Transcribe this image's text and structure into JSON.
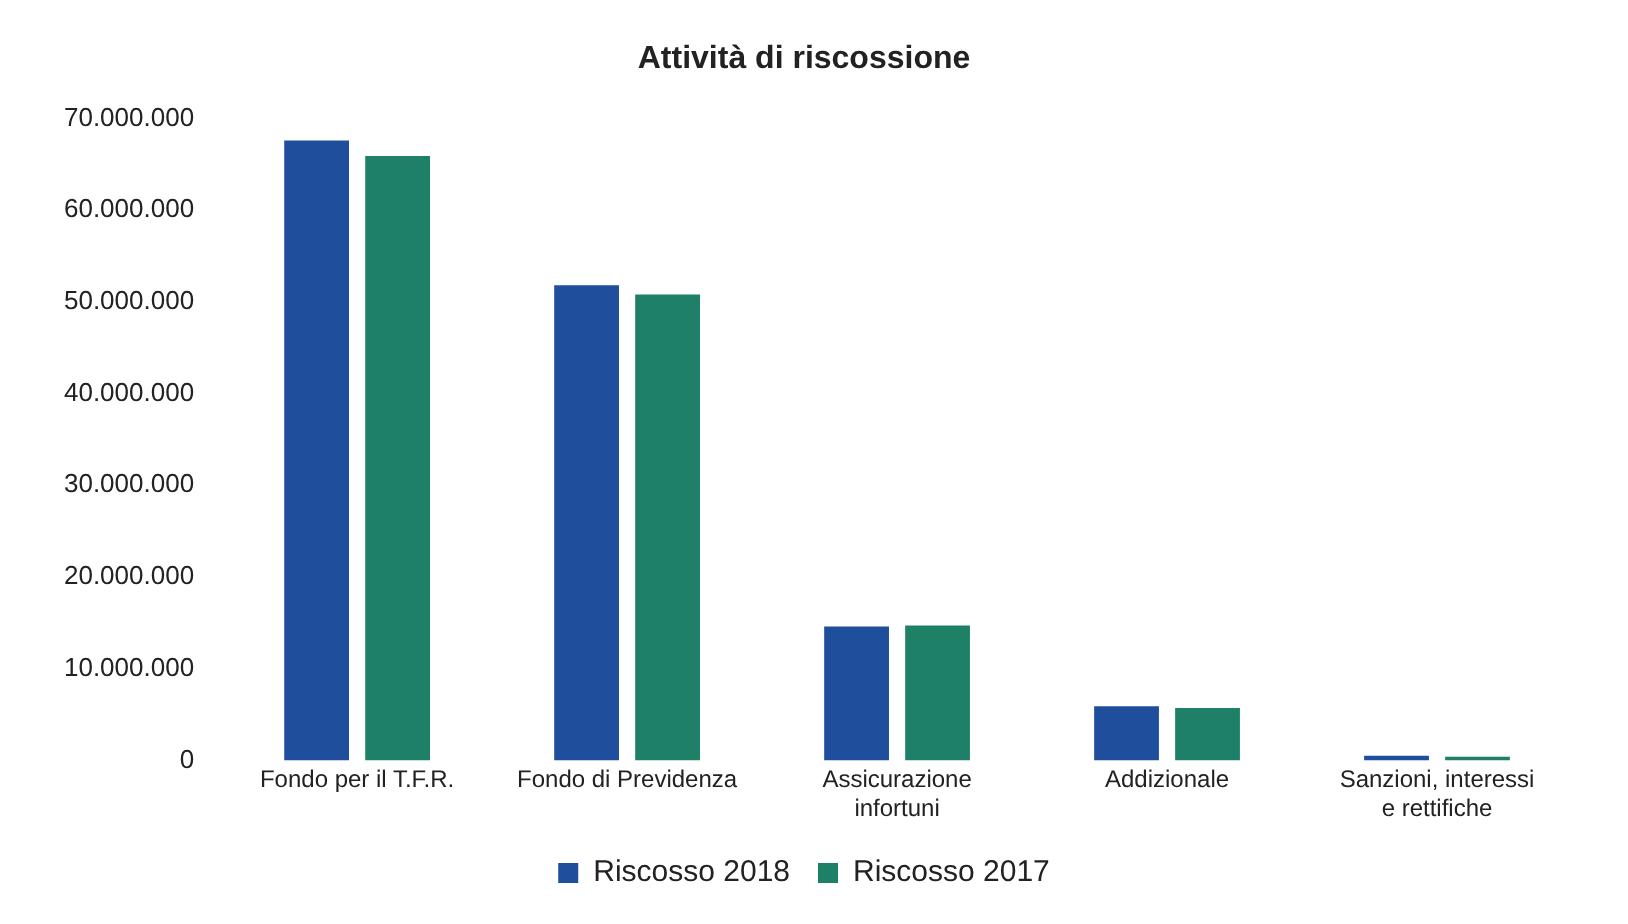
{
  "chart_data": {
    "type": "bar",
    "title": "Attività di riscossione",
    "categories": [
      "Fondo per il T.F.R.",
      "Fondo di Previdenza",
      "Assicurazione infortuni",
      "Addizionale",
      "Sanzioni, interessi e rettifiche"
    ],
    "series": [
      {
        "name": "Riscosso 2018",
        "color": "#1f4e9c",
        "values": [
          67600000,
          51800000,
          14600000,
          5900000,
          500000
        ]
      },
      {
        "name": "Riscosso 2017",
        "color": "#1f8068",
        "values": [
          65900000,
          50800000,
          14700000,
          5700000,
          400000
        ]
      }
    ],
    "ylim": [
      0,
      70000000
    ],
    "yticks": [
      {
        "value": 0,
        "label": "0"
      },
      {
        "value": 10000000,
        "label": "10.000.000"
      },
      {
        "value": 20000000,
        "label": "20.000.000"
      },
      {
        "value": 30000000,
        "label": "30.000.000"
      },
      {
        "value": 40000000,
        "label": "40.000.000"
      },
      {
        "value": 50000000,
        "label": "50.000.000"
      },
      {
        "value": 60000000,
        "label": "60.000.000"
      },
      {
        "value": 70000000,
        "label": "70.000.000"
      }
    ],
    "grid": false,
    "legend": "bottom"
  }
}
